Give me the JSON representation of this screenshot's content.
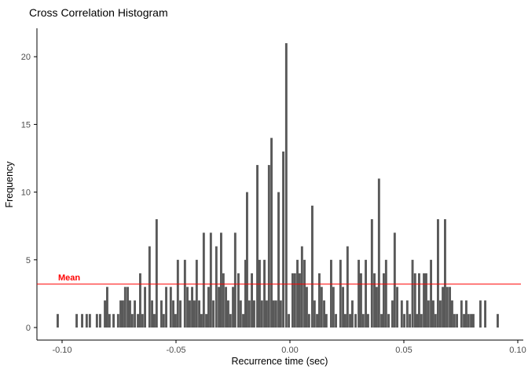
{
  "chart_data": {
    "type": "bar",
    "subtype": "histogram",
    "title": "Cross Correlation Histogram",
    "xlabel": "Recurrence time (sec)",
    "ylabel": "Frequency",
    "xlim": [
      -0.111,
      0.1025
    ],
    "ylim": [
      0,
      22
    ],
    "grid": false,
    "legend": "none",
    "bin_width": 0.001,
    "bar_color": "#595959",
    "axis_color": "#000000",
    "tick_label_color": "#4D4D4D",
    "x_ticks": [
      {
        "v": -0.1,
        "label": "-0.10"
      },
      {
        "v": -0.05,
        "label": "-0.05"
      },
      {
        "v": 0.0,
        "label": "0.00"
      },
      {
        "v": 0.05,
        "label": "0.05"
      },
      {
        "v": 0.1,
        "label": "0.10"
      }
    ],
    "y_ticks": [
      {
        "v": 0,
        "label": "0"
      },
      {
        "v": 5,
        "label": "5"
      },
      {
        "v": 10,
        "label": "10"
      },
      {
        "v": 15,
        "label": "15"
      },
      {
        "v": 20,
        "label": "20"
      }
    ],
    "mean": {
      "value": 3.2,
      "label": "Mean",
      "color": "#FF0000"
    },
    "bars": [
      [
        -0.1024,
        1
      ],
      [
        -0.0941,
        1
      ],
      [
        -0.0917,
        1
      ],
      [
        -0.0897,
        1
      ],
      [
        -0.0883,
        1
      ],
      [
        -0.0852,
        1
      ],
      [
        -0.0838,
        1
      ],
      [
        -0.0817,
        2
      ],
      [
        -0.0807,
        3
      ],
      [
        -0.0797,
        1
      ],
      [
        -0.0779,
        1
      ],
      [
        -0.0759,
        1
      ],
      [
        -0.0748,
        2
      ],
      [
        -0.0738,
        2
      ],
      [
        -0.0728,
        3
      ],
      [
        -0.0717,
        3
      ],
      [
        -0.0707,
        2
      ],
      [
        -0.0697,
        1
      ],
      [
        -0.0686,
        2
      ],
      [
        -0.0672,
        1
      ],
      [
        -0.0662,
        4
      ],
      [
        -0.0652,
        1
      ],
      [
        -0.0641,
        3
      ],
      [
        -0.0621,
        6
      ],
      [
        -0.061,
        2
      ],
      [
        -0.06,
        1
      ],
      [
        -0.059,
        8
      ],
      [
        -0.0569,
        2
      ],
      [
        -0.0559,
        1
      ],
      [
        -0.0548,
        3
      ],
      [
        -0.0528,
        3
      ],
      [
        -0.0517,
        2
      ],
      [
        -0.0507,
        1
      ],
      [
        -0.0497,
        5
      ],
      [
        -0.0486,
        2
      ],
      [
        -0.0466,
        5
      ],
      [
        -0.0455,
        3
      ],
      [
        -0.0445,
        2
      ],
      [
        -0.0434,
        3
      ],
      [
        -0.0424,
        2
      ],
      [
        -0.0414,
        5
      ],
      [
        -0.0403,
        2
      ],
      [
        -0.0393,
        1
      ],
      [
        -0.0383,
        7
      ],
      [
        -0.0372,
        1
      ],
      [
        -0.0362,
        3
      ],
      [
        -0.0352,
        7
      ],
      [
        -0.0341,
        2
      ],
      [
        -0.0328,
        6
      ],
      [
        -0.0317,
        3
      ],
      [
        -0.0307,
        7
      ],
      [
        -0.0297,
        4
      ],
      [
        -0.0286,
        3
      ],
      [
        -0.0276,
        2
      ],
      [
        -0.0266,
        1
      ],
      [
        -0.0255,
        3
      ],
      [
        -0.0245,
        7
      ],
      [
        -0.0231,
        4
      ],
      [
        -0.0221,
        2
      ],
      [
        -0.021,
        1
      ],
      [
        -0.02,
        5
      ],
      [
        -0.0193,
        10
      ],
      [
        -0.0183,
        2
      ],
      [
        -0.0172,
        4
      ],
      [
        -0.0162,
        2
      ],
      [
        -0.0148,
        12
      ],
      [
        -0.0138,
        5
      ],
      [
        -0.0128,
        2
      ],
      [
        -0.0117,
        5
      ],
      [
        -0.0107,
        2
      ],
      [
        -0.0097,
        12
      ],
      [
        -0.0086,
        14
      ],
      [
        -0.0076,
        2
      ],
      [
        -0.0066,
        2
      ],
      [
        -0.0055,
        10
      ],
      [
        -0.0045,
        2
      ],
      [
        -0.0034,
        13
      ],
      [
        -0.0021,
        21
      ],
      [
        -0.001,
        1
      ],
      [
        0.0007,
        4
      ],
      [
        0.0017,
        4
      ],
      [
        0.0028,
        5
      ],
      [
        0.0038,
        4
      ],
      [
        0.0048,
        6
      ],
      [
        0.0059,
        5
      ],
      [
        0.0069,
        3
      ],
      [
        0.0079,
        1
      ],
      [
        0.0093,
        9
      ],
      [
        0.0103,
        2
      ],
      [
        0.0114,
        1
      ],
      [
        0.0124,
        4
      ],
      [
        0.0134,
        3
      ],
      [
        0.0145,
        2
      ],
      [
        0.0155,
        1
      ],
      [
        0.0176,
        5
      ],
      [
        0.0186,
        3
      ],
      [
        0.0197,
        1
      ],
      [
        0.0217,
        5
      ],
      [
        0.0228,
        3
      ],
      [
        0.0238,
        1
      ],
      [
        0.0248,
        6
      ],
      [
        0.0259,
        1
      ],
      [
        0.0269,
        2
      ],
      [
        0.0283,
        1
      ],
      [
        0.0297,
        5
      ],
      [
        0.0307,
        4
      ],
      [
        0.0317,
        1
      ],
      [
        0.0328,
        5
      ],
      [
        0.0338,
        1
      ],
      [
        0.0355,
        8
      ],
      [
        0.0366,
        4
      ],
      [
        0.0376,
        3
      ],
      [
        0.0386,
        11
      ],
      [
        0.0397,
        1
      ],
      [
        0.0407,
        4
      ],
      [
        0.0417,
        5
      ],
      [
        0.0428,
        1
      ],
      [
        0.0445,
        2
      ],
      [
        0.0455,
        7
      ],
      [
        0.0466,
        3
      ],
      [
        0.0486,
        2
      ],
      [
        0.0497,
        1
      ],
      [
        0.051,
        2
      ],
      [
        0.0521,
        1
      ],
      [
        0.0533,
        5
      ],
      [
        0.0544,
        4
      ],
      [
        0.0552,
        1
      ],
      [
        0.0562,
        4
      ],
      [
        0.0572,
        1
      ],
      [
        0.0583,
        4
      ],
      [
        0.0593,
        4
      ],
      [
        0.0603,
        2
      ],
      [
        0.0614,
        5
      ],
      [
        0.0624,
        2
      ],
      [
        0.0634,
        1
      ],
      [
        0.0645,
        8
      ],
      [
        0.0655,
        2
      ],
      [
        0.0666,
        3
      ],
      [
        0.0676,
        8
      ],
      [
        0.0686,
        3
      ],
      [
        0.0697,
        3
      ],
      [
        0.0707,
        2
      ],
      [
        0.0717,
        1
      ],
      [
        0.0728,
        1
      ],
      [
        0.0748,
        2
      ],
      [
        0.0759,
        1
      ],
      [
        0.0769,
        2
      ],
      [
        0.0779,
        1
      ],
      [
        0.079,
        1
      ],
      [
        0.08,
        1
      ],
      [
        0.0831,
        2
      ],
      [
        0.0852,
        2
      ],
      [
        0.0907,
        1
      ]
    ]
  }
}
